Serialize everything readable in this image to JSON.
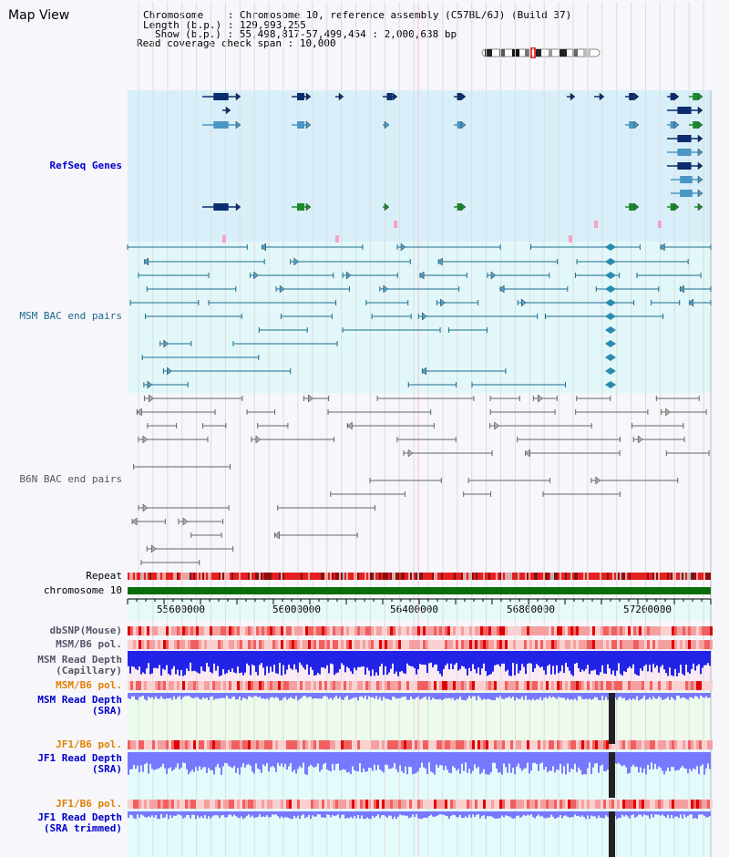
{
  "page": {
    "title": "Map View"
  },
  "info": {
    "chromosome_label": "Chromosome",
    "chromosome_value": "Chromosome 10, reference assembly (C57BL/6J) (Build 37)",
    "length_label": "Length (b.p.)",
    "length_value": "129,993,255",
    "show_label": "Show (b.p.)",
    "show_value": "55,498,817-57,499,454 : 2,000,638 bp",
    "coverage_label": "Read coverage check span",
    "coverage_value": "10,000"
  },
  "tracks": {
    "refseq": "RefSeq Genes",
    "msm_bac": "MSM BAC end pairs",
    "b6n_bac": "B6N BAC end pairs",
    "repeat": "Repeat",
    "chromosome": "chromosome 10",
    "dbsnp": "dbSNP(Mouse)",
    "msm_b6_pol_1": "MSM/B6 pol.",
    "msm_depth_cap_1": "MSM Read Depth",
    "msm_depth_cap_2": "(Capillary)",
    "msm_b6_pol_2": "MSM/B6 pol.",
    "msm_depth_sra_1": "MSM Read Depth",
    "msm_depth_sra_2": "(SRA)",
    "jf1_b6_pol_1": "JF1/B6 pol.",
    "jf1_depth_sra_1": "JF1 Read Depth",
    "jf1_depth_sra_2": "(SRA)",
    "jf1_b6_pol_2": "JF1/B6 pol.",
    "jf1_depth_trim_1": "JF1 Read Depth",
    "jf1_depth_trim_2": "(SRA trimmed)"
  },
  "axis": {
    "ticks": [
      "55600000",
      "56000000",
      "56400000",
      "56800000",
      "57200000"
    ]
  },
  "colors": {
    "refseq_bg": "#d8effa",
    "msm_bg": "#e2f7f9",
    "gene_dark": "#0b2d6e",
    "gene_light": "#4a96c4",
    "gene_green": "#1a8a2a",
    "msm_line": "#1a6e8e",
    "b6n_line": "#666666",
    "chrom_green": "#0a6e0a",
    "depth_blue": "#2323e8",
    "depth_light": "#7878ff"
  }
}
